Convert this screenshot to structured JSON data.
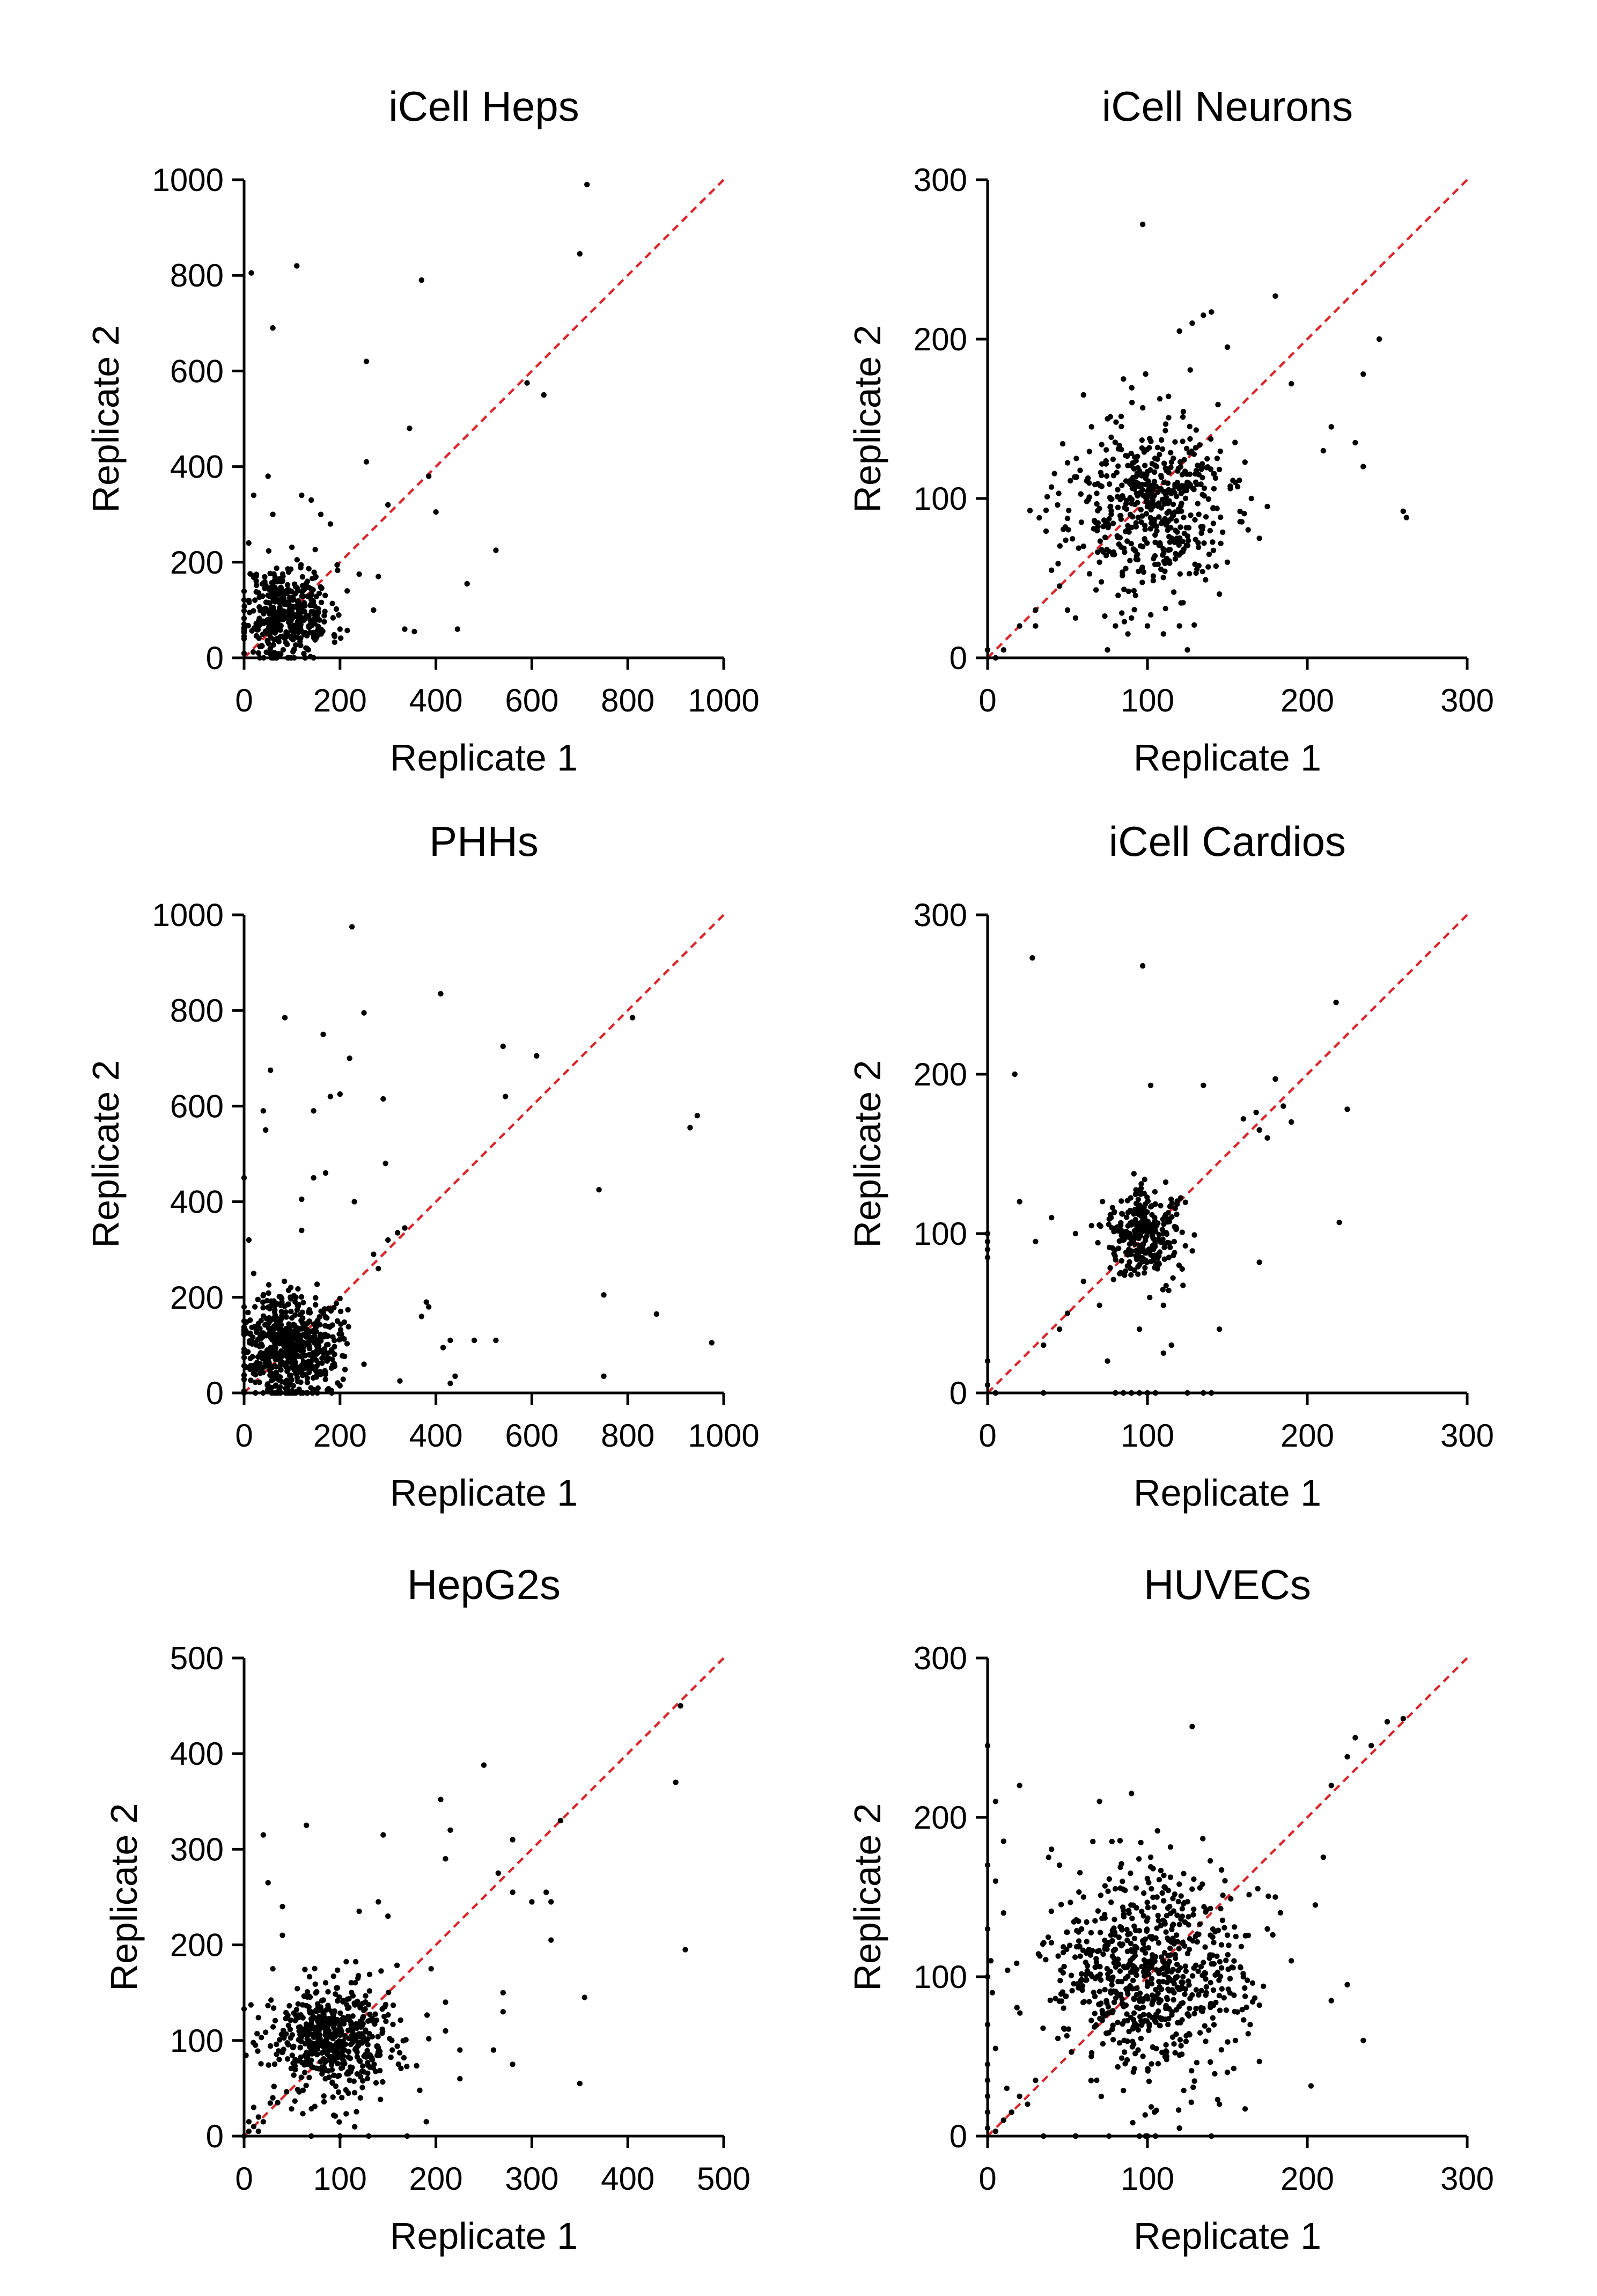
{
  "chart_data": [
    {
      "type": "scatter",
      "title": "iCell Heps",
      "xlabel": "Replicate 1",
      "ylabel": "Replicate 2",
      "xlim": [
        0,
        1000
      ],
      "ylim": [
        0,
        1000
      ],
      "xticks": [
        0,
        200,
        400,
        600,
        800,
        1000
      ],
      "yticks": [
        0,
        200,
        400,
        600,
        800,
        1000
      ],
      "identity_line": {
        "color": "#d9262b",
        "style": "dashed"
      },
      "cluster": {
        "center": [
          90,
          95
        ],
        "spread": [
          45,
          50
        ],
        "count": 420,
        "seed": 11
      },
      "points": [
        [
          15,
          805
        ],
        [
          60,
          690
        ],
        [
          110,
          820
        ],
        [
          370,
          790
        ],
        [
          255,
          620
        ],
        [
          700,
          845
        ],
        [
          715,
          990
        ],
        [
          590,
          575
        ],
        [
          625,
          550
        ],
        [
          345,
          480
        ],
        [
          255,
          410
        ],
        [
          385,
          380
        ],
        [
          300,
          320
        ],
        [
          400,
          305
        ],
        [
          525,
          225
        ],
        [
          465,
          155
        ],
        [
          335,
          60
        ],
        [
          355,
          55
        ],
        [
          445,
          60
        ],
        [
          270,
          100
        ],
        [
          215,
          140
        ],
        [
          240,
          175
        ],
        [
          280,
          170
        ],
        [
          140,
          330
        ],
        [
          120,
          340
        ],
        [
          50,
          380
        ],
        [
          20,
          340
        ],
        [
          160,
          300
        ],
        [
          180,
          280
        ],
        [
          60,
          300
        ],
        [
          200,
          60
        ],
        [
          30,
          10
        ],
        [
          10,
          120
        ],
        [
          0,
          45
        ]
      ]
    },
    {
      "type": "scatter",
      "title": "iCell Neurons",
      "xlabel": "Replicate 1",
      "ylabel": "Replicate 2",
      "xlim": [
        0,
        300
      ],
      "ylim": [
        0,
        300
      ],
      "xticks": [
        0,
        100,
        200,
        300
      ],
      "yticks": [
        0,
        100,
        200,
        300
      ],
      "identity_line": {
        "color": "#d9262b",
        "style": "dashed"
      },
      "cluster": {
        "center": [
          100,
          95
        ],
        "spread": [
          25,
          27
        ],
        "count": 520,
        "seed": 23
      },
      "points": [
        [
          97,
          272
        ],
        [
          180,
          227
        ],
        [
          245,
          200
        ],
        [
          140,
          217
        ],
        [
          135,
          215
        ],
        [
          128,
          210
        ],
        [
          150,
          195
        ],
        [
          120,
          205
        ],
        [
          190,
          172
        ],
        [
          235,
          178
        ],
        [
          215,
          145
        ],
        [
          210,
          130
        ],
        [
          230,
          135
        ],
        [
          235,
          120
        ],
        [
          260,
          92
        ],
        [
          262,
          88
        ],
        [
          175,
          95
        ],
        [
          155,
          110
        ],
        [
          165,
          100
        ],
        [
          170,
          75
        ],
        [
          150,
          60
        ],
        [
          145,
          40
        ],
        [
          120,
          20
        ],
        [
          110,
          15
        ],
        [
          100,
          20
        ],
        [
          90,
          25
        ],
        [
          55,
          25
        ],
        [
          20,
          20
        ],
        [
          30,
          30
        ],
        [
          10,
          5
        ],
        [
          5,
          0
        ],
        [
          0,
          5
        ],
        [
          70,
          60
        ],
        [
          60,
          70
        ],
        [
          45,
          45
        ],
        [
          50,
          30
        ],
        [
          40,
          55
        ],
        [
          80,
          20
        ],
        [
          125,
          5
        ],
        [
          75,
          5
        ],
        [
          30,
          20
        ],
        [
          60,
          165
        ],
        [
          75,
          150
        ],
        [
          85,
          175
        ],
        [
          65,
          145
        ]
      ]
    },
    {
      "type": "scatter",
      "title": "PHHs",
      "xlabel": "Replicate 1",
      "ylabel": "Replicate 2",
      "xlim": [
        0,
        1000
      ],
      "ylim": [
        0,
        1000
      ],
      "xticks": [
        0,
        200,
        400,
        600,
        800,
        1000
      ],
      "yticks": [
        0,
        200,
        400,
        600,
        800,
        1000
      ],
      "identity_line": {
        "color": "#d9262b",
        "style": "dashed"
      },
      "cluster": {
        "center": [
          95,
          100
        ],
        "spread": [
          50,
          55
        ],
        "count": 620,
        "seed": 37
      },
      "points": [
        [
          225,
          975
        ],
        [
          410,
          835
        ],
        [
          85,
          785
        ],
        [
          250,
          795
        ],
        [
          165,
          750
        ],
        [
          220,
          700
        ],
        [
          610,
          705
        ],
        [
          810,
          785
        ],
        [
          540,
          725
        ],
        [
          55,
          675
        ],
        [
          180,
          620
        ],
        [
          200,
          625
        ],
        [
          145,
          590
        ],
        [
          40,
          590
        ],
        [
          290,
          615
        ],
        [
          545,
          620
        ],
        [
          945,
          580
        ],
        [
          930,
          555
        ],
        [
          45,
          550
        ],
        [
          295,
          480
        ],
        [
          145,
          450
        ],
        [
          170,
          460
        ],
        [
          740,
          425
        ],
        [
          230,
          400
        ],
        [
          120,
          405
        ],
        [
          335,
          345
        ],
        [
          320,
          335
        ],
        [
          300,
          320
        ],
        [
          270,
          290
        ],
        [
          280,
          260
        ],
        [
          750,
          205
        ],
        [
          860,
          165
        ],
        [
          975,
          105
        ],
        [
          380,
          190
        ],
        [
          385,
          180
        ],
        [
          430,
          110
        ],
        [
          480,
          110
        ],
        [
          415,
          95
        ],
        [
          525,
          110
        ],
        [
          440,
          35
        ],
        [
          750,
          35
        ],
        [
          430,
          20
        ],
        [
          370,
          160
        ],
        [
          250,
          60
        ],
        [
          325,
          25
        ],
        [
          200,
          15
        ],
        [
          10,
          320
        ],
        [
          20,
          250
        ],
        [
          120,
          340
        ],
        [
          0,
          450
        ]
      ]
    },
    {
      "type": "scatter",
      "title": "iCell Cardios",
      "xlabel": "Replicate 1",
      "ylabel": "Replicate 2",
      "xlim": [
        0,
        300
      ],
      "ylim": [
        0,
        300
      ],
      "xticks": [
        0,
        100,
        200,
        300
      ],
      "yticks": [
        0,
        100,
        200,
        300
      ],
      "identity_line": {
        "color": "#d9262b",
        "style": "dashed"
      },
      "cluster": {
        "center": [
          98,
          100
        ],
        "spread": [
          12,
          14
        ],
        "count": 300,
        "seed": 41
      },
      "points": [
        [
          28,
          273
        ],
        [
          97,
          268
        ],
        [
          218,
          245
        ],
        [
          17,
          200
        ],
        [
          102,
          193
        ],
        [
          135,
          193
        ],
        [
          180,
          197
        ],
        [
          168,
          176
        ],
        [
          160,
          172
        ],
        [
          185,
          180
        ],
        [
          190,
          170
        ],
        [
          170,
          165
        ],
        [
          175,
          160
        ],
        [
          225,
          178
        ],
        [
          220,
          107
        ],
        [
          170,
          82
        ],
        [
          145,
          40
        ],
        [
          110,
          25
        ],
        [
          115,
          30
        ],
        [
          110,
          55
        ],
        [
          95,
          40
        ],
        [
          70,
          55
        ],
        [
          60,
          70
        ],
        [
          50,
          50
        ],
        [
          45,
          40
        ],
        [
          55,
          100
        ],
        [
          65,
          105
        ],
        [
          30,
          95
        ],
        [
          20,
          120
        ],
        [
          40,
          110
        ],
        [
          35,
          30
        ],
        [
          75,
          20
        ],
        [
          0,
          100
        ],
        [
          0,
          95
        ],
        [
          0,
          90
        ],
        [
          0,
          85
        ],
        [
          0,
          20
        ],
        [
          0,
          5
        ],
        [
          5,
          0
        ],
        [
          5,
          0
        ],
        [
          35,
          0
        ],
        [
          80,
          0
        ],
        [
          85,
          0
        ],
        [
          90,
          0
        ],
        [
          95,
          0
        ],
        [
          100,
          0
        ],
        [
          105,
          0
        ],
        [
          125,
          0
        ],
        [
          135,
          0
        ],
        [
          140,
          0
        ]
      ]
    },
    {
      "type": "scatter",
      "title": "HepG2s",
      "xlabel": "Replicate 1",
      "ylabel": "Replicate 2",
      "xlim": [
        0,
        500
      ],
      "ylim": [
        0,
        500
      ],
      "xticks": [
        0,
        100,
        200,
        300,
        400,
        500
      ],
      "yticks": [
        0,
        100,
        200,
        300,
        400,
        500
      ],
      "identity_line": {
        "color": "#d9262b",
        "style": "dashed"
      },
      "cluster": {
        "center": [
          95,
          100
        ],
        "spread": [
          35,
          30
        ],
        "count": 560,
        "seed": 53
      },
      "points": [
        [
          455,
          450
        ],
        [
          250,
          388
        ],
        [
          450,
          370
        ],
        [
          460,
          195
        ],
        [
          205,
          352
        ],
        [
          215,
          320
        ],
        [
          280,
          310
        ],
        [
          210,
          290
        ],
        [
          330,
          330
        ],
        [
          315,
          255
        ],
        [
          320,
          245
        ],
        [
          300,
          245
        ],
        [
          320,
          205
        ],
        [
          280,
          255
        ],
        [
          265,
          275
        ],
        [
          270,
          150
        ],
        [
          270,
          130
        ],
        [
          210,
          140
        ],
        [
          210,
          110
        ],
        [
          225,
          90
        ],
        [
          225,
          60
        ],
        [
          260,
          90
        ],
        [
          280,
          75
        ],
        [
          355,
          145
        ],
        [
          350,
          55
        ],
        [
          195,
          175
        ],
        [
          190,
          15
        ],
        [
          20,
          315
        ],
        [
          65,
          325
        ],
        [
          40,
          240
        ],
        [
          25,
          265
        ],
        [
          40,
          210
        ],
        [
          30,
          175
        ],
        [
          145,
          315
        ],
        [
          140,
          245
        ],
        [
          120,
          235
        ],
        [
          150,
          230
        ],
        [
          0,
          0
        ],
        [
          5,
          5
        ],
        [
          10,
          10
        ],
        [
          15,
          20
        ],
        [
          20,
          15
        ],
        [
          5,
          15
        ],
        [
          30,
          40
        ],
        [
          10,
          30
        ],
        [
          35,
          35
        ],
        [
          15,
          5
        ],
        [
          130,
          0
        ],
        [
          170,
          0
        ],
        [
          70,
          0
        ],
        [
          100,
          0
        ]
      ]
    },
    {
      "type": "scatter",
      "title": "HUVECs",
      "xlabel": "Replicate 1",
      "ylabel": "Replicate 2",
      "xlim": [
        0,
        300
      ],
      "ylim": [
        0,
        300
      ],
      "xticks": [
        0,
        100,
        200,
        300
      ],
      "yticks": [
        0,
        100,
        200,
        300
      ],
      "identity_line": {
        "color": "#d9262b",
        "style": "dashed"
      },
      "cluster": {
        "center": [
          100,
          100
        ],
        "spread": [
          30,
          32
        ],
        "count": 720,
        "seed": 67
      },
      "points": [
        [
          0,
          245
        ],
        [
          5,
          210
        ],
        [
          10,
          185
        ],
        [
          20,
          220
        ],
        [
          0,
          170
        ],
        [
          5,
          160
        ],
        [
          10,
          140
        ],
        [
          0,
          130
        ],
        [
          2,
          110
        ],
        [
          0,
          100
        ],
        [
          3,
          90
        ],
        [
          0,
          70
        ],
        [
          5,
          55
        ],
        [
          0,
          45
        ],
        [
          0,
          35
        ],
        [
          0,
          25
        ],
        [
          0,
          15
        ],
        [
          0,
          5
        ],
        [
          5,
          3
        ],
        [
          10,
          10
        ],
        [
          15,
          15
        ],
        [
          20,
          25
        ],
        [
          25,
          20
        ],
        [
          12,
          30
        ],
        [
          30,
          35
        ],
        [
          128,
          257
        ],
        [
          250,
          260
        ],
        [
          260,
          262
        ],
        [
          230,
          250
        ],
        [
          240,
          245
        ],
        [
          215,
          220
        ],
        [
          225,
          238
        ],
        [
          210,
          175
        ],
        [
          205,
          145
        ],
        [
          215,
          85
        ],
        [
          235,
          60
        ],
        [
          225,
          95
        ],
        [
          190,
          110
        ],
        [
          180,
          150
        ],
        [
          175,
          130
        ],
        [
          160,
          100
        ],
        [
          155,
          60
        ],
        [
          150,
          40
        ],
        [
          145,
          20
        ],
        [
          120,
          5
        ],
        [
          95,
          0
        ],
        [
          100,
          0
        ],
        [
          105,
          0
        ],
        [
          140,
          0
        ],
        [
          55,
          0
        ],
        [
          35,
          0
        ],
        [
          60,
          150
        ],
        [
          45,
          170
        ],
        [
          40,
          180
        ],
        [
          70,
          210
        ],
        [
          90,
          215
        ]
      ]
    }
  ]
}
